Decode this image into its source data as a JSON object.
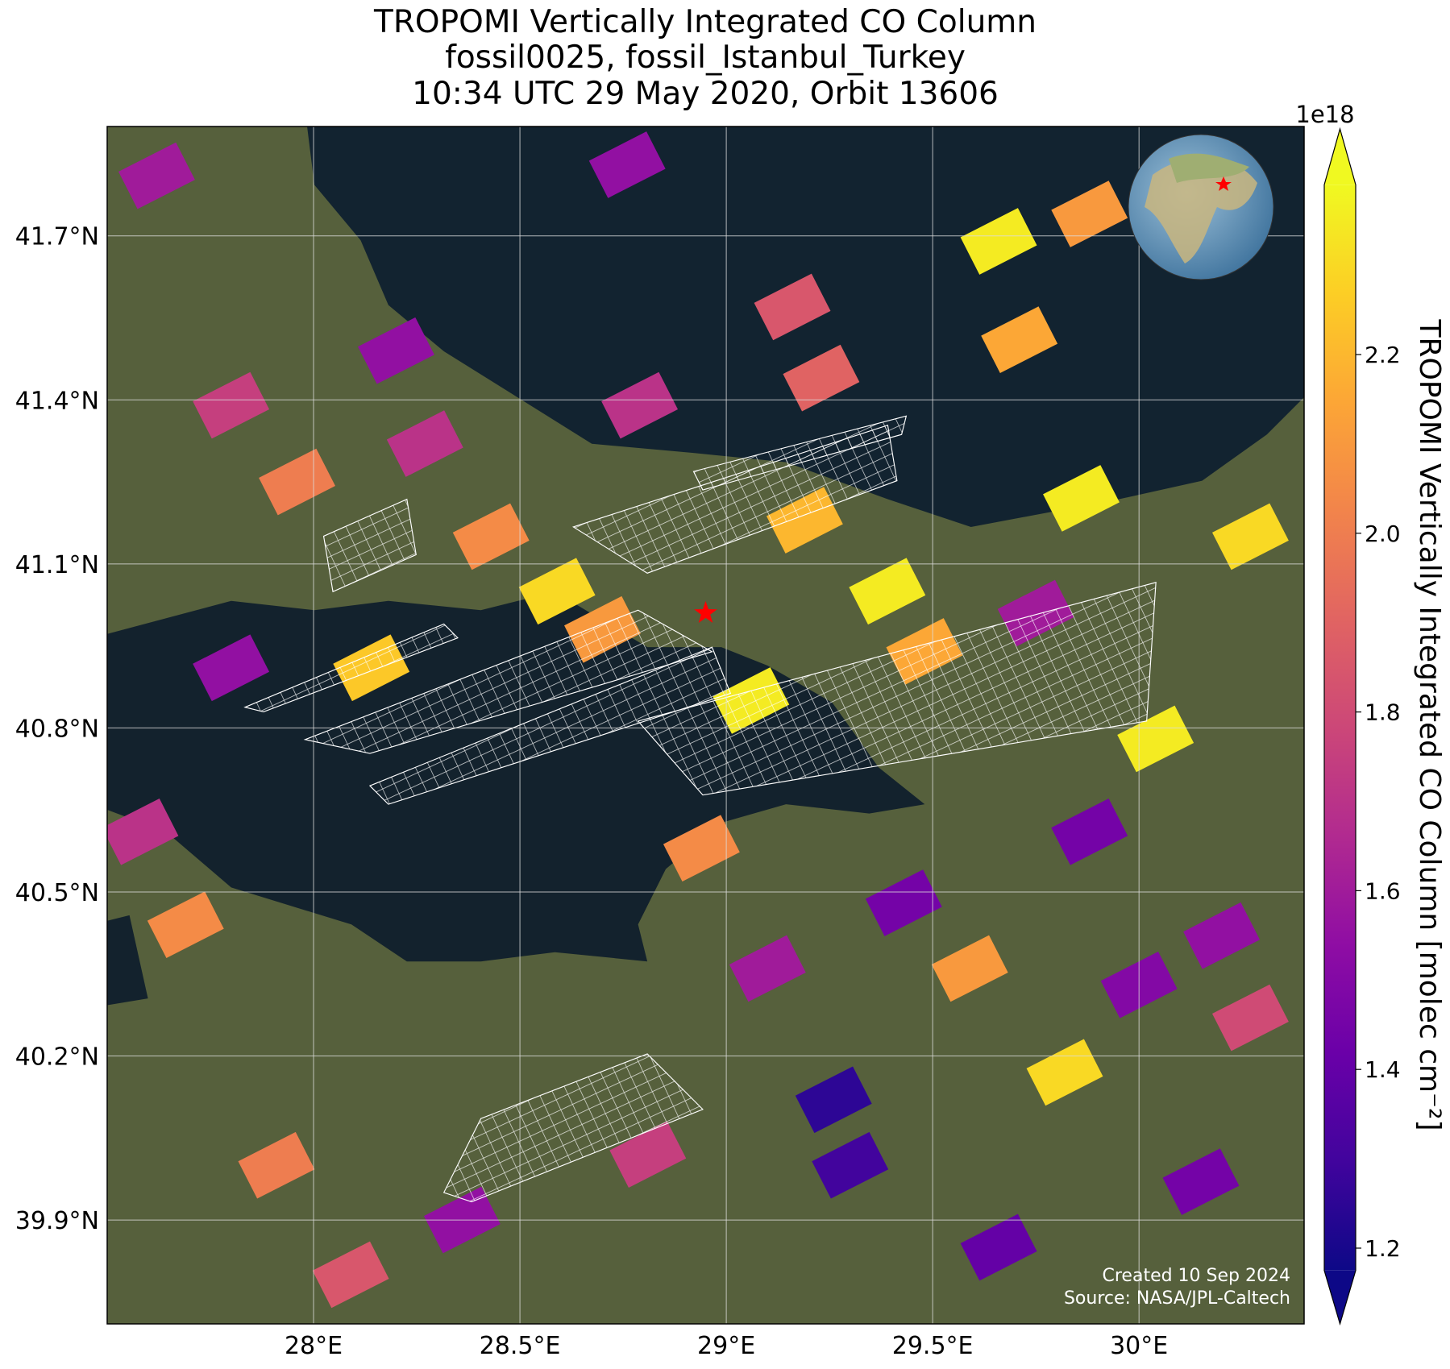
{
  "chart_data": {
    "type": "map",
    "title": "TROPOMI Vertically Integrated CO Column",
    "subtitle": [
      "fossil0025, fossil_Istanbul_Turkey",
      "10:34 UTC 29 May 2020, Orbit 13606"
    ],
    "xlim": [
      27.5,
      30.4
    ],
    "ylim": [
      39.71,
      41.9
    ],
    "xticks": [
      {
        "value": 28,
        "label": "28°E"
      },
      {
        "value": 28.5,
        "label": "28.5°E"
      },
      {
        "value": 29,
        "label": "29°E"
      },
      {
        "value": 29.5,
        "label": "29.5°E"
      },
      {
        "value": 30,
        "label": "30°E"
      }
    ],
    "yticks": [
      {
        "value": 39.9,
        "label": "39.9°N"
      },
      {
        "value": 40.2,
        "label": "40.2°N"
      },
      {
        "value": 40.5,
        "label": "40.5°N"
      },
      {
        "value": 40.8,
        "label": "40.8°N"
      },
      {
        "value": 41.1,
        "label": "41.1°N"
      },
      {
        "value": 41.4,
        "label": "41.4°N"
      },
      {
        "value": 41.7,
        "label": "41.7°N"
      }
    ],
    "grid": true,
    "cells": {
      "lon": [
        27.62,
        28.76,
        29.16,
        29.23,
        28.79,
        29.66,
        29.88,
        29.86,
        29.71,
        29.39,
        30.27,
        27.8,
        28.14,
        28.7,
        29.06,
        30.04,
        29.88,
        29.26,
        29.3,
        29.82,
        30.15,
        29.66,
        27.91,
        27.69,
        27.58,
        27.8,
        27.96,
        28.27,
        28.2,
        28.43,
        28.59,
        29.19,
        29.48,
        29.75,
        30.27,
        28.81,
        28.36,
        28.09,
        28.94,
        29.59,
        29.43,
        29.1,
        30.2,
        30.0
      ],
      "lat": [
        41.81,
        41.83,
        41.57,
        41.44,
        41.39,
        41.69,
        41.74,
        41.22,
        41.51,
        41.05,
        41.15,
        40.91,
        40.91,
        40.98,
        40.85,
        40.78,
        40.61,
        40.12,
        40.0,
        40.17,
        39.97,
        39.85,
        40.0,
        40.44,
        40.61,
        41.39,
        41.25,
        41.32,
        41.49,
        41.15,
        41.05,
        41.18,
        40.94,
        41.01,
        40.27,
        40.02,
        39.9,
        39.8,
        40.58,
        40.36,
        40.48,
        40.36,
        40.42,
        40.33
      ],
      "values": [
        1.6,
        1.55,
        1.85,
        1.9,
        1.7,
        2.35,
        2.1,
        2.35,
        2.15,
        2.35,
        2.3,
        1.55,
        2.25,
        2.1,
        2.35,
        2.35,
        1.45,
        1.25,
        1.3,
        2.3,
        1.45,
        1.4,
        2.0,
        2.05,
        1.7,
        1.75,
        2.0,
        1.7,
        1.55,
        2.05,
        2.3,
        2.2,
        2.15,
        1.6,
        1.8,
        1.75,
        1.55,
        1.85,
        2.05,
        2.1,
        1.45,
        1.6,
        1.55,
        1.5
      ]
    },
    "target": {
      "lon": 28.95,
      "lat": 41.01,
      "color": "#ff0000"
    },
    "colorbar": {
      "label": "TROPOMI Vertically Integrated CO Column [molec cm⁻²]",
      "exponent": "1e18",
      "clim": [
        1.175,
        2.39
      ],
      "ticks": [
        1.2,
        1.4,
        1.6,
        1.8,
        {
          "value": 2,
          "label": "2.0"
        },
        2.2
      ],
      "colormap": [
        "#0d0887",
        "#41049d",
        "#6a00a8",
        "#8f0da4",
        "#b12a90",
        "#cc4778",
        "#e16462",
        "#f2844b",
        "#fca636",
        "#fcce25",
        "#f0f921"
      ]
    },
    "credits": [
      "Created 10 Sep 2024",
      "Source: NASA/JPL-Caltech"
    ]
  }
}
